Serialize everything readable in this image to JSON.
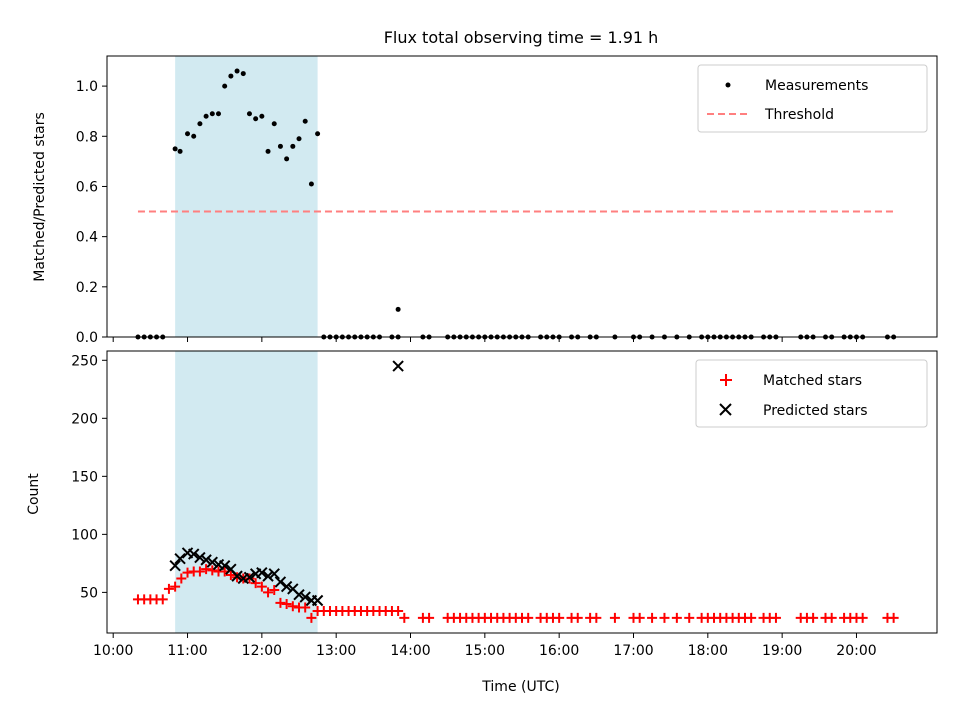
{
  "chart_data": [
    {
      "type": "scatter",
      "title": "Flux total observing time = 1.91 h",
      "xlabel": "",
      "ylabel": "Matched/Predicted stars",
      "ylim": [
        0,
        1.12
      ],
      "yticks": [
        "0.0",
        "0.2",
        "0.4",
        "0.6",
        "0.8",
        "1.0"
      ],
      "shaded_span": [
        "10:50",
        "12:45"
      ],
      "shade_color": "#add8e6",
      "legend_position": "upper right",
      "series": [
        {
          "name": "Measurements",
          "marker": "dot",
          "color": "#000000",
          "points": [
            [
              "10:20",
              0
            ],
            [
              "10:25",
              0
            ],
            [
              "10:30",
              0
            ],
            [
              "10:35",
              0
            ],
            [
              "10:40",
              0
            ],
            [
              "10:50",
              0.75
            ],
            [
              "10:54",
              0.74
            ],
            [
              "11:00",
              0.81
            ],
            [
              "11:05",
              0.8
            ],
            [
              "11:10",
              0.85
            ],
            [
              "11:15",
              0.88
            ],
            [
              "11:20",
              0.89
            ],
            [
              "11:25",
              0.89
            ],
            [
              "11:30",
              1.0
            ],
            [
              "11:35",
              1.04
            ],
            [
              "11:40",
              1.06
            ],
            [
              "11:45",
              1.05
            ],
            [
              "11:50",
              0.89
            ],
            [
              "11:55",
              0.87
            ],
            [
              "12:00",
              0.88
            ],
            [
              "12:05",
              0.74
            ],
            [
              "12:10",
              0.85
            ],
            [
              "12:15",
              0.76
            ],
            [
              "12:20",
              0.71
            ],
            [
              "12:25",
              0.76
            ],
            [
              "12:30",
              0.79
            ],
            [
              "12:35",
              0.86
            ],
            [
              "12:40",
              0.61
            ],
            [
              "12:45",
              0.81
            ],
            [
              "12:50",
              0
            ],
            [
              "12:55",
              0
            ],
            [
              "13:00",
              0
            ],
            [
              "13:05",
              0
            ],
            [
              "13:10",
              0
            ],
            [
              "13:15",
              0
            ],
            [
              "13:20",
              0
            ],
            [
              "13:25",
              0
            ],
            [
              "13:30",
              0
            ],
            [
              "13:35",
              0
            ],
            [
              "13:45",
              0
            ],
            [
              "13:50",
              0
            ],
            [
              "13:50",
              0.11
            ],
            [
              "14:10",
              0
            ],
            [
              "14:15",
              0
            ],
            [
              "14:30",
              0
            ],
            [
              "14:35",
              0
            ],
            [
              "14:40",
              0
            ],
            [
              "14:45",
              0
            ],
            [
              "14:50",
              0
            ],
            [
              "14:55",
              0
            ],
            [
              "15:00",
              0
            ],
            [
              "15:05",
              0
            ],
            [
              "15:10",
              0
            ],
            [
              "15:15",
              0
            ],
            [
              "15:20",
              0
            ],
            [
              "15:25",
              0
            ],
            [
              "15:30",
              0
            ],
            [
              "15:35",
              0
            ],
            [
              "15:45",
              0
            ],
            [
              "15:50",
              0
            ],
            [
              "15:55",
              0
            ],
            [
              "16:00",
              0
            ],
            [
              "16:10",
              0
            ],
            [
              "16:15",
              0
            ],
            [
              "16:25",
              0
            ],
            [
              "16:30",
              0
            ],
            [
              "16:45",
              0
            ],
            [
              "17:00",
              0
            ],
            [
              "17:05",
              0
            ],
            [
              "17:15",
              0
            ],
            [
              "17:25",
              0
            ],
            [
              "17:35",
              0
            ],
            [
              "17:45",
              0
            ],
            [
              "17:55",
              0
            ],
            [
              "18:00",
              0
            ],
            [
              "18:05",
              0
            ],
            [
              "18:10",
              0
            ],
            [
              "18:15",
              0
            ],
            [
              "18:20",
              0
            ],
            [
              "18:25",
              0
            ],
            [
              "18:30",
              0
            ],
            [
              "18:35",
              0
            ],
            [
              "18:45",
              0
            ],
            [
              "18:50",
              0
            ],
            [
              "18:55",
              0
            ],
            [
              "19:15",
              0
            ],
            [
              "19:20",
              0
            ],
            [
              "19:25",
              0
            ],
            [
              "19:35",
              0
            ],
            [
              "19:40",
              0
            ],
            [
              "19:50",
              0
            ],
            [
              "19:55",
              0
            ],
            [
              "20:00",
              0
            ],
            [
              "20:05",
              0
            ],
            [
              "20:25",
              0
            ],
            [
              "20:30",
              0
            ]
          ]
        },
        {
          "name": "Threshold",
          "line_style": "dashed",
          "color": "#ff7f7f",
          "x": [
            "10:20",
            "20:30"
          ],
          "y": [
            0.5,
            0.5
          ]
        }
      ]
    },
    {
      "type": "scatter",
      "title": "",
      "xlabel": "Time (UTC)",
      "ylabel": "Count",
      "ylim": [
        15,
        258
      ],
      "yticks": [
        "50",
        "100",
        "150",
        "200",
        "250"
      ],
      "xlim": [
        "09:55",
        "21:05"
      ],
      "xticks": [
        "10:00",
        "11:00",
        "12:00",
        "13:00",
        "14:00",
        "15:00",
        "16:00",
        "17:00",
        "18:00",
        "19:00",
        "20:00"
      ],
      "shaded_span": [
        "10:50",
        "12:45"
      ],
      "shade_color": "#add8e6",
      "legend_position": "upper right",
      "series": [
        {
          "name": "Matched stars",
          "marker": "plus",
          "color": "#ff0000",
          "points": [
            [
              "10:20",
              44
            ],
            [
              "10:25",
              44
            ],
            [
              "10:30",
              44
            ],
            [
              "10:35",
              44
            ],
            [
              "10:40",
              44
            ],
            [
              "10:45",
              53
            ],
            [
              "10:50",
              55
            ],
            [
              "10:55",
              62
            ],
            [
              "11:00",
              67
            ],
            [
              "11:05",
              68
            ],
            [
              "11:10",
              68
            ],
            [
              "11:15",
              70
            ],
            [
              "11:20",
              69
            ],
            [
              "11:25",
              68
            ],
            [
              "11:30",
              68
            ],
            [
              "11:35",
              65
            ],
            [
              "11:40",
              63
            ],
            [
              "11:45",
              62
            ],
            [
              "11:50",
              62
            ],
            [
              "11:55",
              58
            ],
            [
              "12:00",
              55
            ],
            [
              "12:05",
              50
            ],
            [
              "12:10",
              52
            ],
            [
              "12:15",
              41
            ],
            [
              "12:20",
              40
            ],
            [
              "12:25",
              38
            ],
            [
              "12:30",
              37
            ],
            [
              "12:35",
              37
            ],
            [
              "12:40",
              28
            ],
            [
              "12:45",
              34
            ],
            [
              "12:50",
              34
            ],
            [
              "12:55",
              34
            ],
            [
              "13:00",
              34
            ],
            [
              "13:05",
              34
            ],
            [
              "13:10",
              34
            ],
            [
              "13:15",
              34
            ],
            [
              "13:20",
              34
            ],
            [
              "13:25",
              34
            ],
            [
              "13:30",
              34
            ],
            [
              "13:35",
              34
            ],
            [
              "13:40",
              34
            ],
            [
              "13:45",
              34
            ],
            [
              "13:50",
              34
            ],
            [
              "13:55",
              28
            ],
            [
              "14:10",
              28
            ],
            [
              "14:15",
              28
            ],
            [
              "14:30",
              28
            ],
            [
              "14:35",
              28
            ],
            [
              "14:40",
              28
            ],
            [
              "14:45",
              28
            ],
            [
              "14:50",
              28
            ],
            [
              "14:55",
              28
            ],
            [
              "15:00",
              28
            ],
            [
              "15:05",
              28
            ],
            [
              "15:10",
              28
            ],
            [
              "15:15",
              28
            ],
            [
              "15:20",
              28
            ],
            [
              "15:25",
              28
            ],
            [
              "15:30",
              28
            ],
            [
              "15:35",
              28
            ],
            [
              "15:45",
              28
            ],
            [
              "15:50",
              28
            ],
            [
              "15:55",
              28
            ],
            [
              "16:00",
              28
            ],
            [
              "16:10",
              28
            ],
            [
              "16:15",
              28
            ],
            [
              "16:25",
              28
            ],
            [
              "16:30",
              28
            ],
            [
              "16:45",
              28
            ],
            [
              "17:00",
              28
            ],
            [
              "17:05",
              28
            ],
            [
              "17:15",
              28
            ],
            [
              "17:25",
              28
            ],
            [
              "17:35",
              28
            ],
            [
              "17:45",
              28
            ],
            [
              "17:55",
              28
            ],
            [
              "18:00",
              28
            ],
            [
              "18:05",
              28
            ],
            [
              "18:10",
              28
            ],
            [
              "18:15",
              28
            ],
            [
              "18:20",
              28
            ],
            [
              "18:25",
              28
            ],
            [
              "18:30",
              28
            ],
            [
              "18:35",
              28
            ],
            [
              "18:45",
              28
            ],
            [
              "18:50",
              28
            ],
            [
              "18:55",
              28
            ],
            [
              "19:15",
              28
            ],
            [
              "19:20",
              28
            ],
            [
              "19:25",
              28
            ],
            [
              "19:35",
              28
            ],
            [
              "19:40",
              28
            ],
            [
              "19:50",
              28
            ],
            [
              "19:55",
              28
            ],
            [
              "20:00",
              28
            ],
            [
              "20:05",
              28
            ],
            [
              "20:25",
              28
            ],
            [
              "20:30",
              28
            ]
          ]
        },
        {
          "name": "Predicted stars",
          "marker": "x",
          "color": "#000000",
          "points": [
            [
              "10:50",
              73
            ],
            [
              "10:54",
              79
            ],
            [
              "11:00",
              84
            ],
            [
              "11:05",
              83
            ],
            [
              "11:10",
              80
            ],
            [
              "11:15",
              78
            ],
            [
              "11:20",
              76
            ],
            [
              "11:25",
              74
            ],
            [
              "11:30",
              73
            ],
            [
              "11:35",
              70
            ],
            [
              "11:40",
              64
            ],
            [
              "11:45",
              62
            ],
            [
              "11:50",
              63
            ],
            [
              "11:55",
              66
            ],
            [
              "12:00",
              67
            ],
            [
              "12:05",
              64
            ],
            [
              "12:10",
              66
            ],
            [
              "12:15",
              59
            ],
            [
              "12:20",
              55
            ],
            [
              "12:25",
              53
            ],
            [
              "12:30",
              48
            ],
            [
              "12:35",
              46
            ],
            [
              "12:40",
              43
            ],
            [
              "12:45",
              43
            ],
            [
              "13:50",
              245
            ]
          ]
        }
      ]
    }
  ]
}
